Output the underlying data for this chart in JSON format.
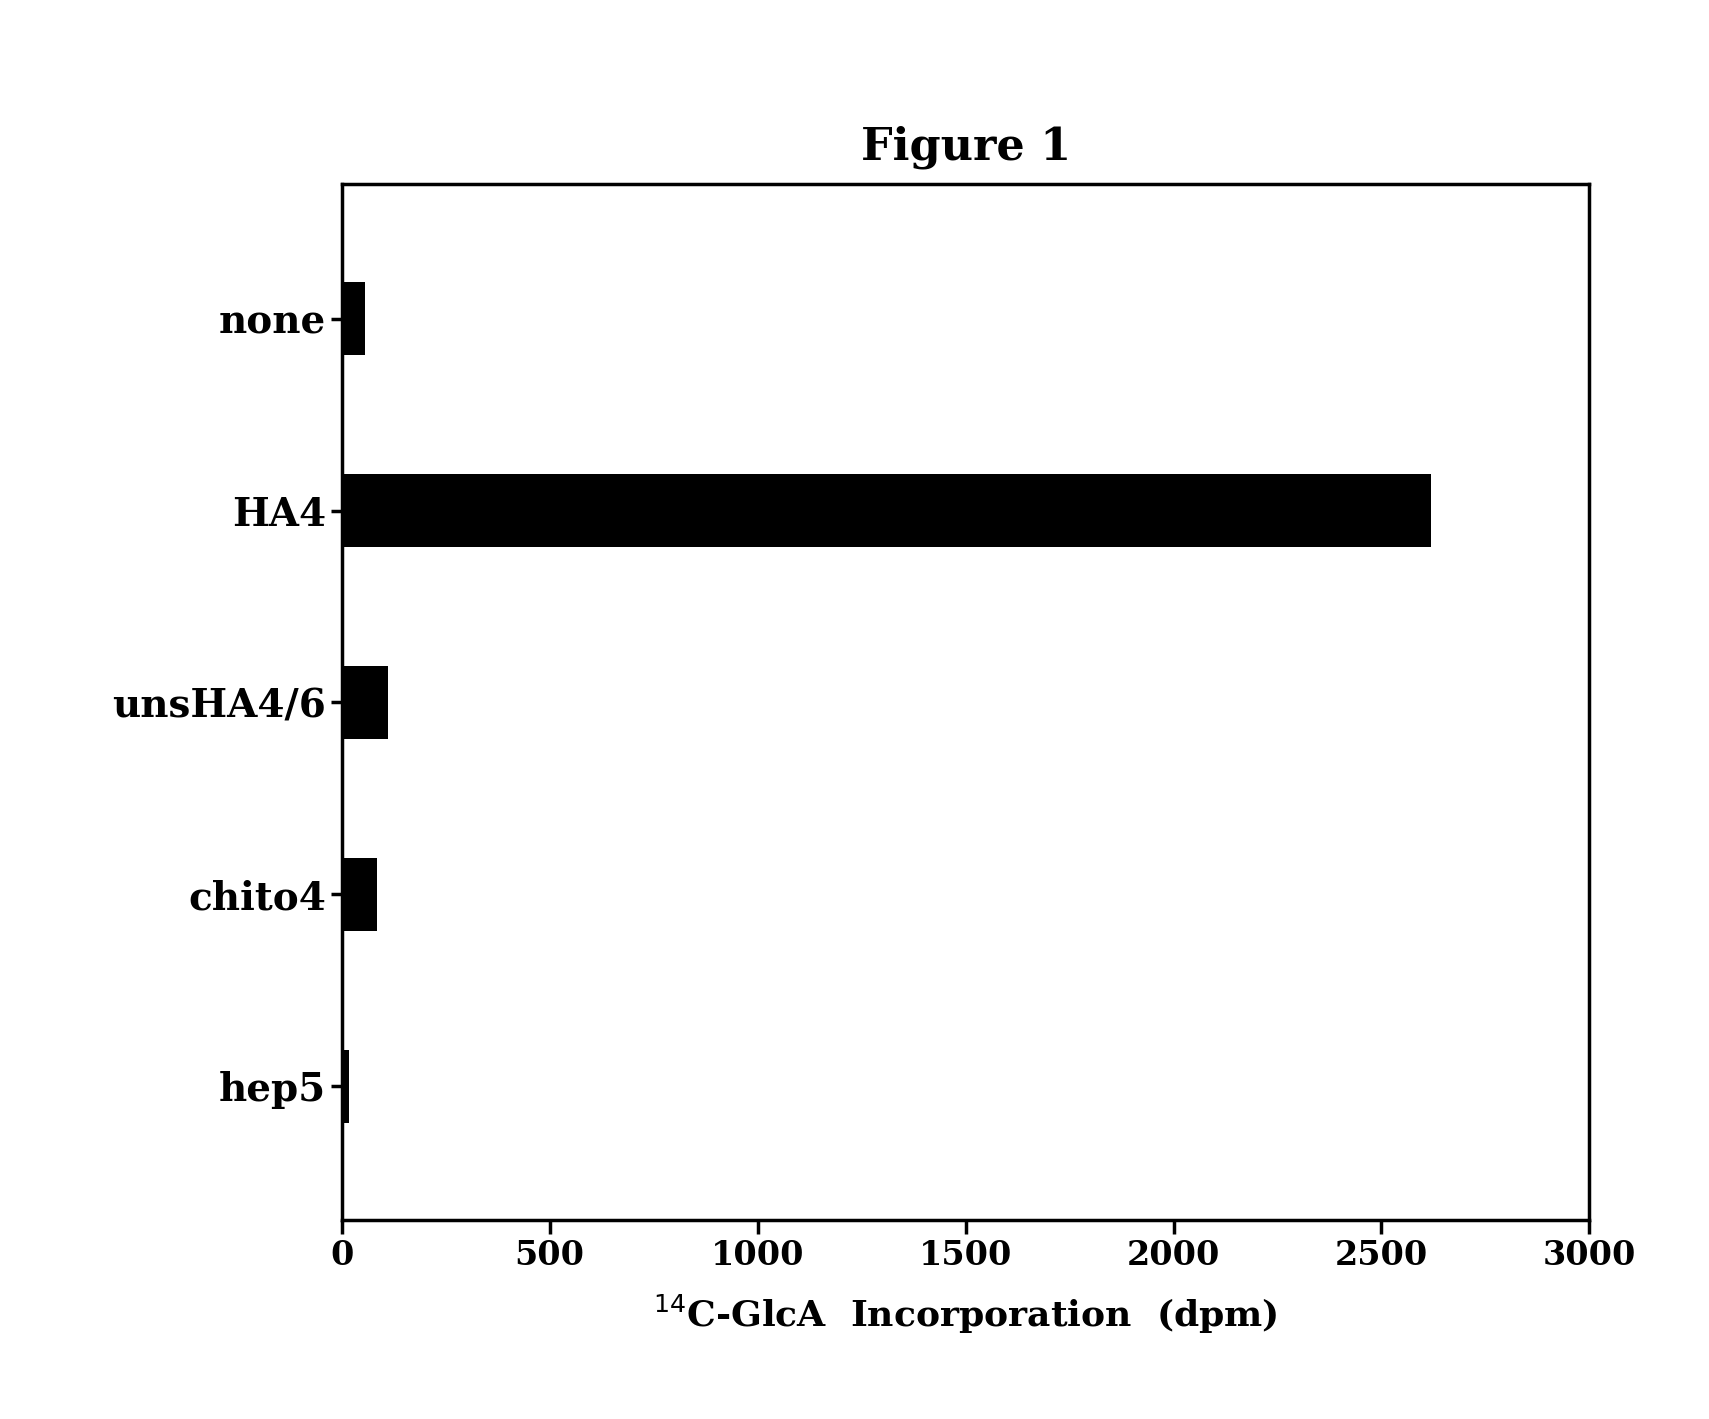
{
  "title": "Figure 1",
  "categories": [
    "none",
    "HA4",
    "unsHA4/6",
    "chito4",
    "hep5"
  ],
  "values": [
    55,
    2620,
    110,
    85,
    18
  ],
  "bar_color": "#000000",
  "background_color": "#ffffff",
  "xlim": [
    0,
    3000
  ],
  "xticks": [
    0,
    500,
    1000,
    1500,
    2000,
    2500,
    3000
  ],
  "xlabel": "$^{14}$C-GlcA  Incorporation  (dpm)",
  "title_fontsize": 32,
  "tick_fontsize": 24,
  "label_fontsize": 26,
  "ytick_fontsize": 28,
  "bar_height": 0.38,
  "spine_linewidth": 2.5
}
